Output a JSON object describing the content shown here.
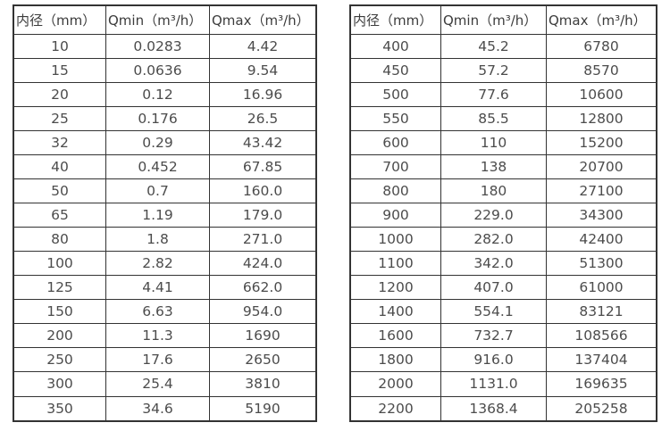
{
  "colors": {
    "background": "#ffffff",
    "border": "#333333",
    "text": "#4c4c4c",
    "header_text": "#3c3c3c"
  },
  "tables": [
    {
      "name": "inner-diameter-flow-rates-small",
      "headers": [
        "内径（mm）",
        "Qmin（m³/h）",
        "Qmax（m³/h）"
      ],
      "rows": [
        [
          "10",
          "0.0283",
          "4.42"
        ],
        [
          "15",
          "0.0636",
          "9.54"
        ],
        [
          "20",
          "0.12",
          "16.96"
        ],
        [
          "25",
          "0.176",
          "26.5"
        ],
        [
          "32",
          "0.29",
          "43.42"
        ],
        [
          "40",
          "0.452",
          "67.85"
        ],
        [
          "50",
          "0.7",
          "160.0"
        ],
        [
          "65",
          "1.19",
          "179.0"
        ],
        [
          "80",
          "1.8",
          "271.0"
        ],
        [
          "100",
          "2.82",
          "424.0"
        ],
        [
          "125",
          "4.41",
          "662.0"
        ],
        [
          "150",
          "6.63",
          "954.0"
        ],
        [
          "200",
          "11.3",
          "1690"
        ],
        [
          "250",
          "17.6",
          "2650"
        ],
        [
          "300",
          "25.4",
          "3810"
        ],
        [
          "350",
          "34.6",
          "5190"
        ]
      ]
    },
    {
      "name": "inner-diameter-flow-rates-large",
      "headers": [
        "内径（mm）",
        "Qmin（m³/h）",
        "Qmax（m³/h）"
      ],
      "rows": [
        [
          "400",
          "45.2",
          "6780"
        ],
        [
          "450",
          "57.2",
          "8570"
        ],
        [
          "500",
          "77.6",
          "10600"
        ],
        [
          "550",
          "85.5",
          "12800"
        ],
        [
          "600",
          "110",
          "15200"
        ],
        [
          "700",
          "138",
          "20700"
        ],
        [
          "800",
          "180",
          "27100"
        ],
        [
          "900",
          "229.0",
          "34300"
        ],
        [
          "1000",
          "282.0",
          "42400"
        ],
        [
          "1100",
          "342.0",
          "51300"
        ],
        [
          "1200",
          "407.0",
          "61000"
        ],
        [
          "1400",
          "554.1",
          "83121"
        ],
        [
          "1600",
          "732.7",
          "108566"
        ],
        [
          "1800",
          "916.0",
          "137404"
        ],
        [
          "2000",
          "1131.0",
          "169635"
        ],
        [
          "2200",
          "1368.4",
          "205258"
        ]
      ]
    }
  ]
}
